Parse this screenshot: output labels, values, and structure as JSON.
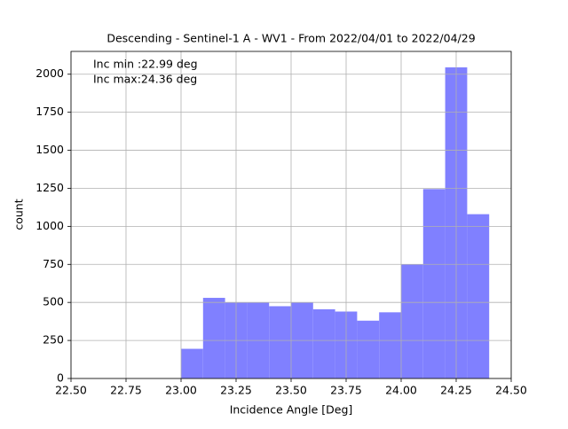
{
  "chart_data": {
    "type": "histogram",
    "title": "Descending - Sentinel-1 A - WV1 - From 2022/04/01 to 2022/04/29",
    "xlabel": "Incidence Angle [Deg]",
    "ylabel": "count",
    "annotations": [
      "Inc min :22.99 deg",
      "Inc max:24.36 deg"
    ],
    "bins": [
      23.0,
      23.1,
      23.2,
      23.3,
      23.4,
      23.5,
      23.6,
      23.7,
      23.8,
      23.9,
      24.0,
      24.1,
      24.2,
      24.3,
      24.4
    ],
    "values": [
      195,
      530,
      500,
      500,
      475,
      500,
      455,
      440,
      380,
      435,
      750,
      1245,
      2045,
      1080
    ],
    "color": "#8080ff",
    "xlim": [
      22.5,
      24.5
    ],
    "xticks": [
      {
        "value": 22.5,
        "label": "22.50"
      },
      {
        "value": 22.75,
        "label": "22.75"
      },
      {
        "value": 23.0,
        "label": "23.00"
      },
      {
        "value": 23.25,
        "label": "23.25"
      },
      {
        "value": 23.5,
        "label": "23.50"
      },
      {
        "value": 23.75,
        "label": "23.75"
      },
      {
        "value": 24.0,
        "label": "24.00"
      },
      {
        "value": 24.25,
        "label": "24.25"
      },
      {
        "value": 24.5,
        "label": "24.50"
      }
    ],
    "ylim": [
      0,
      2150
    ],
    "yticks": [
      0,
      250,
      500,
      750,
      1000,
      1250,
      1500,
      1750,
      2000
    ],
    "grid": true
  }
}
